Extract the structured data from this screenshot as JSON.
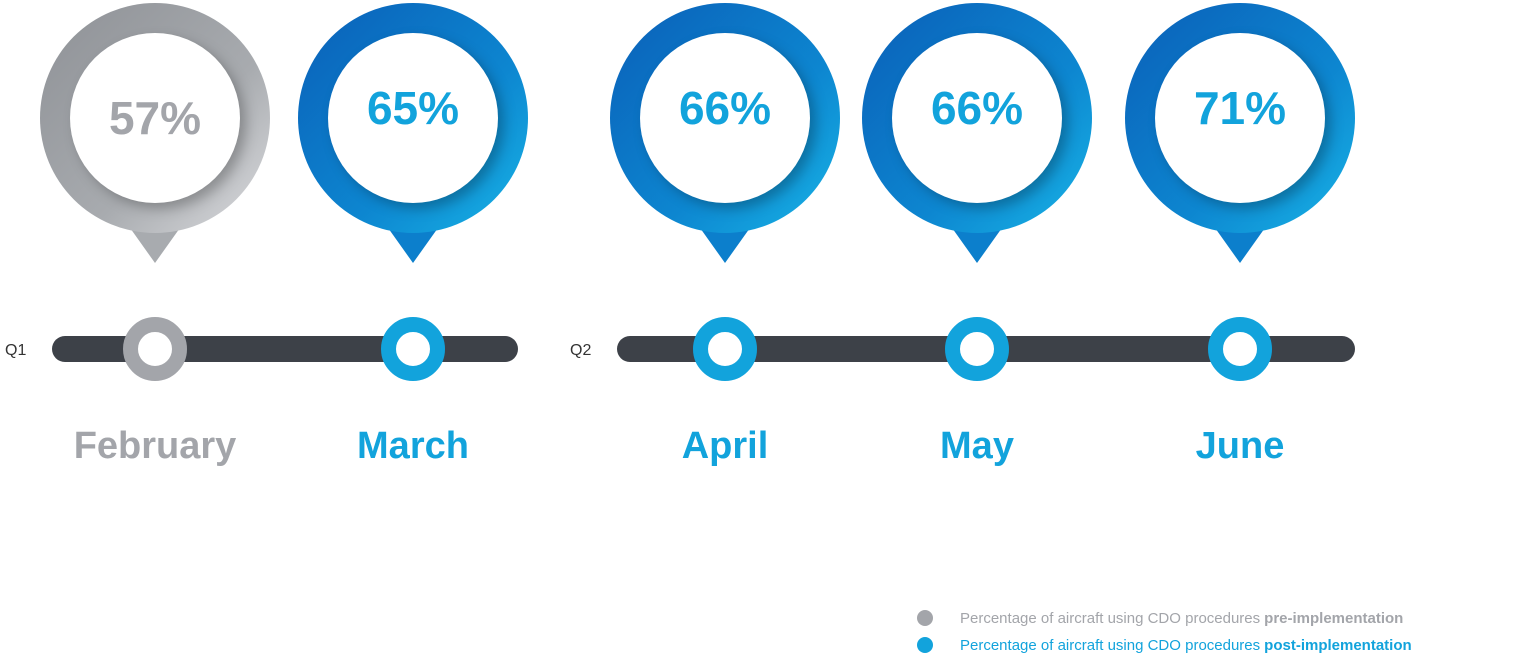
{
  "quarters": [
    {
      "label": "Q1",
      "items": [
        {
          "month": "February",
          "value": "57%",
          "color": "#a3a5aa"
        },
        {
          "month": "March",
          "value": "65%",
          "color": "#12a3dc"
        }
      ]
    },
    {
      "label": "Q2",
      "items": [
        {
          "month": "April",
          "value": "66%",
          "color": "#12a3dc"
        },
        {
          "month": "May",
          "value": "66%",
          "color": "#12a3dc"
        },
        {
          "month": "June",
          "value": "71%",
          "color": "#12a3dc"
        }
      ]
    }
  ],
  "legend": [
    {
      "text": "Percentage of aircraft using CDO procedures",
      "emphasis": "pre-implementation",
      "color": "#a3a5aa"
    },
    {
      "text": "Percentage of aircraft using CDO procedures",
      "emphasis": "post-implementation",
      "color": "#12a3dc"
    }
  ]
}
